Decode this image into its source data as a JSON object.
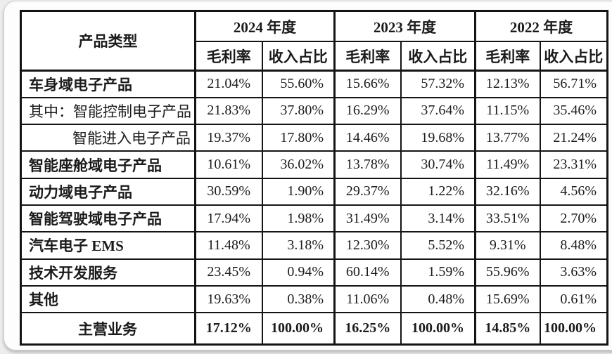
{
  "table": {
    "corner_header": "产品类型",
    "year_groups": [
      {
        "year": "2024 年度",
        "columns": [
          "毛利率",
          "收入占比"
        ]
      },
      {
        "year": "2023 年度",
        "columns": [
          "毛利率",
          "收入占比"
        ]
      },
      {
        "year": "2022 年度",
        "columns": [
          "毛利率",
          "收入占比"
        ]
      }
    ],
    "rows": [
      {
        "label": "车身域电子产品",
        "style": "bold",
        "values": [
          "21.04%",
          "55.60%",
          "15.66%",
          "57.32%",
          "12.13%",
          "56.71%"
        ]
      },
      {
        "label": "其中：智能控制电子产品",
        "style": "normal",
        "values": [
          "21.83%",
          "37.80%",
          "16.29%",
          "37.64%",
          "11.15%",
          "35.46%"
        ]
      },
      {
        "label": "智能进入电子产品",
        "style": "indent",
        "values": [
          "19.37%",
          "17.80%",
          "14.46%",
          "19.68%",
          "13.77%",
          "21.24%"
        ]
      },
      {
        "label": "智能座舱域电子产品",
        "style": "bold",
        "values": [
          "10.61%",
          "36.02%",
          "13.78%",
          "30.74%",
          "11.49%",
          "23.31%"
        ]
      },
      {
        "label": "动力域电子产品",
        "style": "bold",
        "values": [
          "30.59%",
          "1.90%",
          "29.37%",
          "1.22%",
          "32.16%",
          "4.56%"
        ]
      },
      {
        "label": "智能驾驶域电子产品",
        "style": "bold",
        "values": [
          "17.94%",
          "1.98%",
          "31.49%",
          "3.14%",
          "33.51%",
          "2.70%"
        ]
      },
      {
        "label": "汽车电子 EMS",
        "style": "bold",
        "values": [
          "11.48%",
          "3.18%",
          "12.30%",
          "5.52%",
          "9.31%",
          "8.48%"
        ]
      },
      {
        "label": "技术开发服务",
        "style": "bold",
        "values": [
          "23.45%",
          "0.94%",
          "60.14%",
          "1.59%",
          "55.96%",
          "3.63%"
        ]
      },
      {
        "label": "其他",
        "style": "bold",
        "values": [
          "19.63%",
          "0.38%",
          "11.06%",
          "0.48%",
          "15.69%",
          "0.61%"
        ]
      },
      {
        "label": "主营业务",
        "style": "total",
        "values": [
          "17.12%",
          "100.00%",
          "16.25%",
          "100.00%",
          "14.85%",
          "100.00%"
        ]
      }
    ]
  },
  "colors": {
    "border": "#141414",
    "text": "#1b1b1b",
    "card_background": "#fdfdfd"
  }
}
